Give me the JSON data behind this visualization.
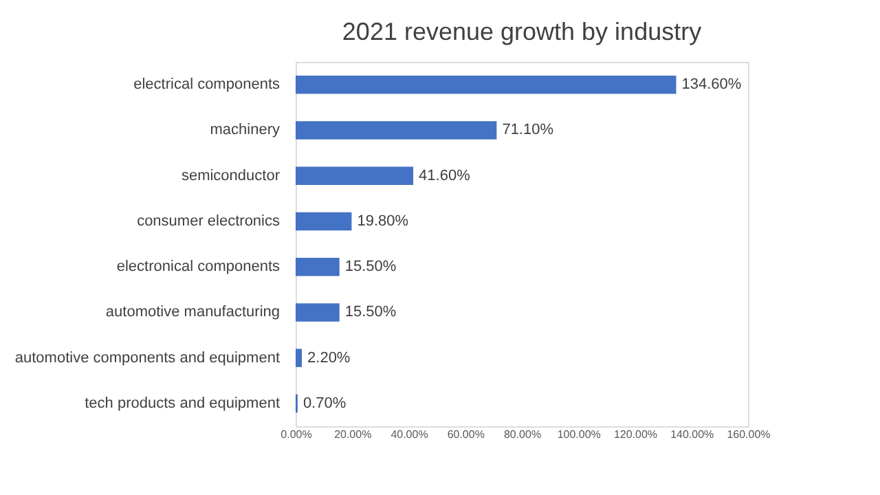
{
  "chart_data": {
    "type": "bar",
    "orientation": "horizontal",
    "title": "2021 revenue growth by industry",
    "categories": [
      "electrical components",
      "machinery",
      "semiconductor",
      "consumer electronics",
      "electronical components",
      "automotive manufacturing",
      "automotive components and equipment",
      "tech products and equipment"
    ],
    "values": [
      134.6,
      71.1,
      41.6,
      19.8,
      15.5,
      15.5,
      2.2,
      0.7
    ],
    "value_labels": [
      "134.60%",
      "71.10%",
      "41.60%",
      "19.80%",
      "15.50%",
      "15.50%",
      "2.20%",
      "0.70%"
    ],
    "color": "#4472c4",
    "xlim": [
      0,
      160
    ],
    "xticks": [
      {
        "value": 0,
        "label": "0.00%"
      },
      {
        "value": 20,
        "label": "20.00%"
      },
      {
        "value": 40,
        "label": "40.00%"
      },
      {
        "value": 60,
        "label": "60.00%"
      },
      {
        "value": 80,
        "label": "80.00%"
      },
      {
        "value": 100,
        "label": "100.00%"
      },
      {
        "value": 120,
        "label": "120.00%"
      },
      {
        "value": 140,
        "label": "140.00%"
      },
      {
        "value": 160,
        "label": "160.00%"
      }
    ],
    "grid": false
  }
}
